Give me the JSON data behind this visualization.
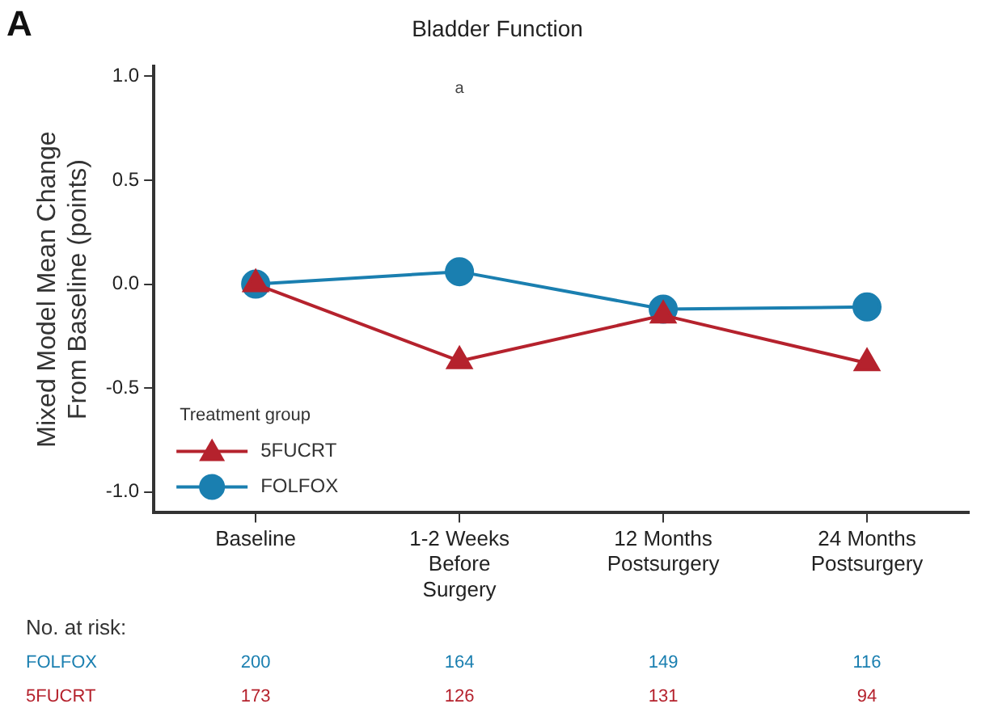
{
  "chart_data": {
    "type": "line",
    "title": "Bladder Function",
    "ylabel": "Mixed Model Mean Change From Baseline (points)",
    "categories": [
      "Baseline",
      "1-2 Weeks Before Surgery",
      "12 Months Postsurgery",
      "24 Months Postsurgery"
    ],
    "series": [
      {
        "name": "5FUCRT",
        "color": "#b5222d",
        "marker": "triangle",
        "values": [
          0.0,
          -0.37,
          -0.15,
          -0.38
        ]
      },
      {
        "name": "FOLFOX",
        "color": "#1a7fb0",
        "marker": "circle",
        "values": [
          0.0,
          0.06,
          -0.12,
          -0.11
        ]
      }
    ],
    "ylim": [
      -1.1,
      1.05
    ],
    "yticks": [
      {
        "value": 1,
        "label": "1.0"
      },
      {
        "value": 0.5,
        "label": "0.5"
      },
      {
        "value": 0,
        "label": "0.0"
      },
      {
        "value": -0.5,
        "label": "-0.5"
      },
      {
        "value": -1,
        "label": "-1.0"
      }
    ],
    "grid": false,
    "legend": "bottom left",
    "legend_title": "Treatment group",
    "line_style": "solid",
    "annotations": [
      "A",
      "No. at risk:",
      "a",
      "200",
      "164",
      "149",
      "116",
      "173",
      "126",
      "131",
      "94"
    ]
  }
}
